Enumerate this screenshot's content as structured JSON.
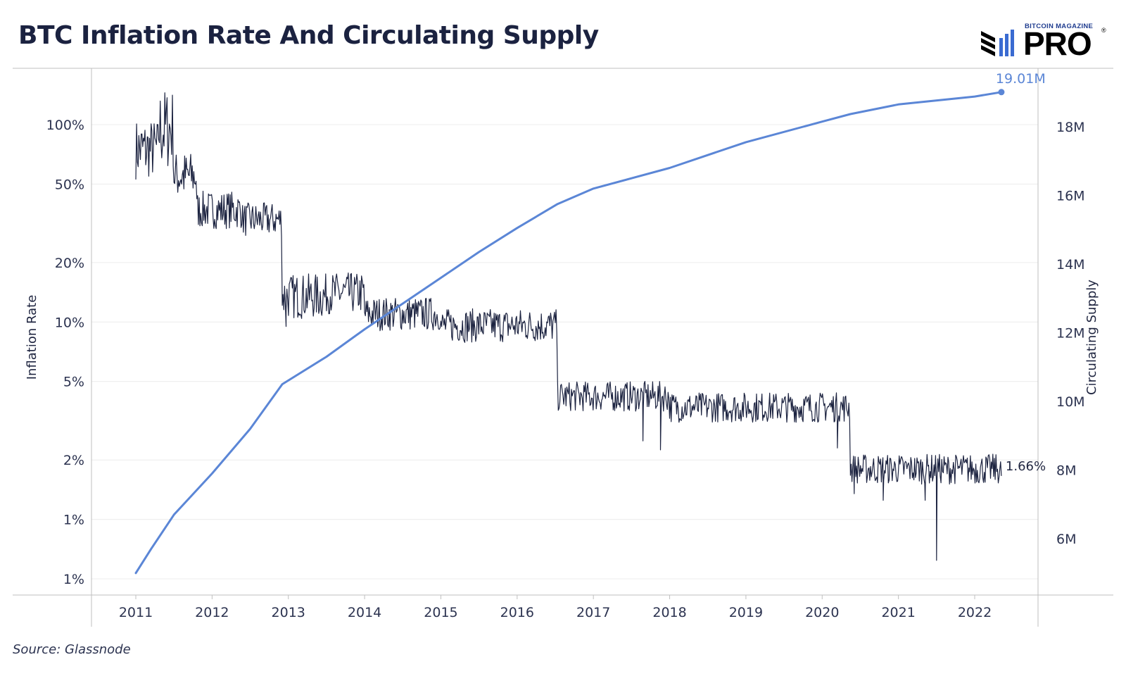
{
  "title": "BTC Inflation Rate And Circulating Supply",
  "logo": {
    "small": "BITCOIN MAGAZINE",
    "big": "PRO",
    "reg": "®"
  },
  "source": "Source: Glassnode",
  "colors": {
    "inflation": "#1c2340",
    "supply": "#5b86d6",
    "grid": "#ececec",
    "axis": "#bfbfbf"
  },
  "chart_data": {
    "type": "line",
    "title": "BTC Inflation Rate And Circulating Supply",
    "xlabel": "",
    "x_ticks": [
      "2011",
      "2012",
      "2013",
      "2014",
      "2015",
      "2016",
      "2017",
      "2018",
      "2019",
      "2020",
      "2021",
      "2022"
    ],
    "left_axis": {
      "label": "Inflation Rate",
      "scale": "log",
      "ticks": [
        {
          "value": 0.5,
          "label": "1%"
        },
        {
          "value": 1,
          "label": "1%"
        },
        {
          "value": 2,
          "label": "2%"
        },
        {
          "value": 5,
          "label": "5%"
        },
        {
          "value": 10,
          "label": "10%"
        },
        {
          "value": 20,
          "label": "20%"
        },
        {
          "value": 50,
          "label": "50%"
        },
        {
          "value": 100,
          "label": "100%"
        }
      ]
    },
    "right_axis": {
      "label": "Circulating Supply",
      "ticks": [
        {
          "value": 6000000,
          "label": "6M"
        },
        {
          "value": 8000000,
          "label": "8M"
        },
        {
          "value": 10000000,
          "label": "10M"
        },
        {
          "value": 12000000,
          "label": "12M"
        },
        {
          "value": 14000000,
          "label": "14M"
        },
        {
          "value": 16000000,
          "label": "16M"
        },
        {
          "value": 18000000,
          "label": "18M"
        }
      ]
    },
    "grid": true,
    "series": [
      {
        "name": "Inflation Rate",
        "axis": "left",
        "end_label": "1.66%",
        "segments": [
          {
            "from": 2011.0,
            "to": 2011.3,
            "level": 75,
            "noise": 0.16
          },
          {
            "from": 2011.3,
            "to": 2011.5,
            "level": 95,
            "noise": 0.22
          },
          {
            "from": 2011.5,
            "to": 2011.8,
            "level": 55,
            "noise": 0.13
          },
          {
            "from": 2011.8,
            "to": 2012.4,
            "level": 37,
            "noise": 0.1
          },
          {
            "from": 2012.4,
            "to": 2012.92,
            "level": 33,
            "noise": 0.09
          },
          {
            "from": 2012.92,
            "to": 2013.5,
            "level": 13.5,
            "noise": 0.12
          },
          {
            "from": 2013.5,
            "to": 2014.0,
            "level": 14,
            "noise": 0.11
          },
          {
            "from": 2014.0,
            "to": 2015.0,
            "level": 11,
            "noise": 0.09
          },
          {
            "from": 2015.0,
            "to": 2016.53,
            "level": 9.6,
            "noise": 0.09
          },
          {
            "from": 2016.53,
            "to": 2018.0,
            "level": 4.2,
            "noise": 0.08
          },
          {
            "from": 2018.0,
            "to": 2020.37,
            "level": 3.7,
            "noise": 0.08
          },
          {
            "from": 2020.37,
            "to": 2022.35,
            "level": 1.8,
            "noise": 0.08
          }
        ],
        "dips": [
          {
            "x": 2012.97,
            "value": 9.5
          },
          {
            "x": 2017.65,
            "value": 2.5
          },
          {
            "x": 2017.88,
            "value": 2.25
          },
          {
            "x": 2020.2,
            "value": 2.3
          },
          {
            "x": 2020.42,
            "value": 1.35
          },
          {
            "x": 2020.8,
            "value": 1.25
          },
          {
            "x": 2021.35,
            "value": 1.25
          },
          {
            "x": 2021.5,
            "value": 0.62
          }
        ],
        "end": {
          "x": 2022.35,
          "value": 1.66
        }
      },
      {
        "name": "Circulating Supply",
        "axis": "right",
        "end_label": "19.01M",
        "x": [
          2011.0,
          2011.2,
          2011.5,
          2012.0,
          2012.5,
          2012.92,
          2013.5,
          2014.0,
          2014.5,
          2015.0,
          2015.5,
          2016.0,
          2016.53,
          2017.0,
          2018.0,
          2019.0,
          2020.0,
          2020.37,
          2021.0,
          2022.0,
          2022.35
        ],
        "values": [
          5000000,
          5700000,
          6700000,
          7900000,
          9200000,
          10500000,
          11300000,
          12100000,
          12850000,
          13600000,
          14350000,
          15050000,
          15750000,
          16200000,
          16800000,
          17550000,
          18150000,
          18370000,
          18650000,
          18880000,
          19010000
        ]
      }
    ]
  }
}
